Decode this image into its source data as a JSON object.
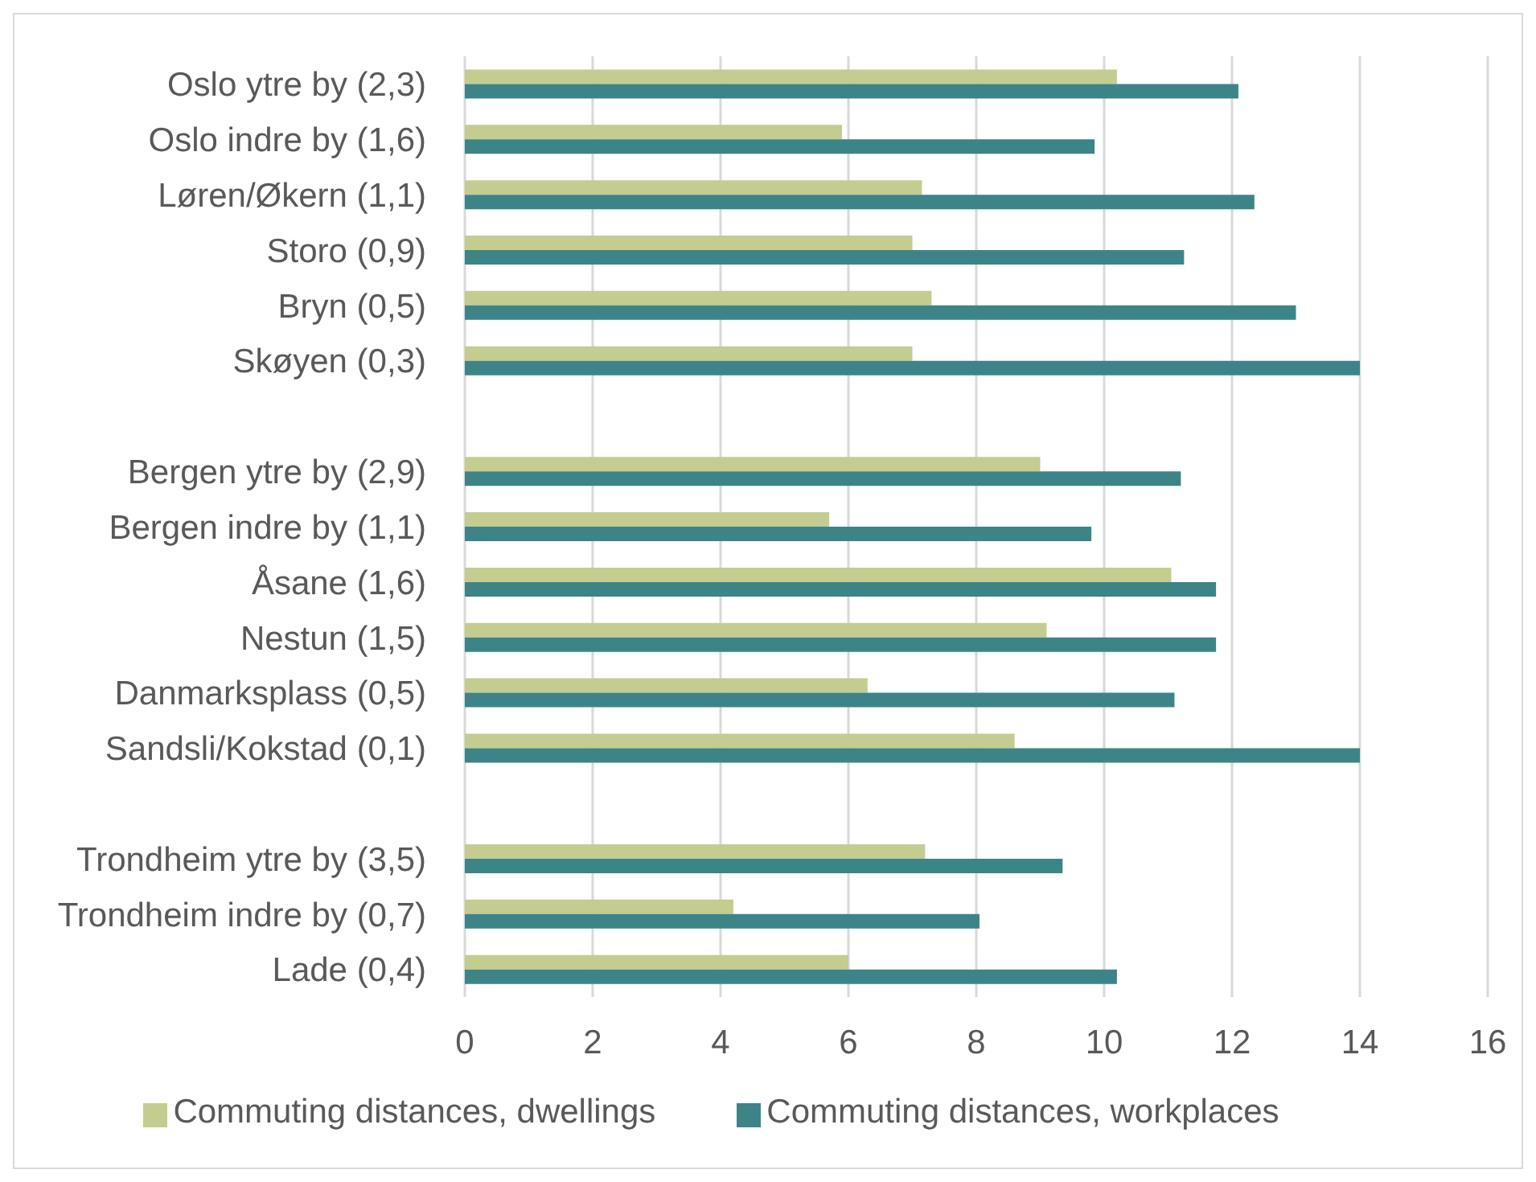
{
  "chart_data": {
    "type": "bar",
    "orientation": "horizontal",
    "categories": [
      "Oslo ytre by (2,3)",
      "Oslo indre by (1,6)",
      "Løren/Økern (1,1)",
      "Storo (0,9)",
      "Bryn (0,5)",
      "Skøyen (0,3)",
      null,
      "Bergen ytre by (2,9)",
      "Bergen indre by (1,1)",
      "Åsane (1,6)",
      "Nestun (1,5)",
      "Danmarksplass (0,5)",
      "Sandsli/Kokstad (0,1)",
      null,
      "Trondheim ytre by (3,5)",
      "Trondheim indre by (0,7)",
      "Lade (0,4)"
    ],
    "series": [
      {
        "name": "Commuting distances, dwellings",
        "color": "#c4cc8f",
        "values": [
          10.2,
          5.9,
          7.15,
          7.0,
          7.3,
          7.0,
          null,
          9.0,
          5.7,
          11.05,
          9.1,
          6.3,
          8.6,
          null,
          7.2,
          4.2,
          6.0
        ]
      },
      {
        "name": "Commuting distances, workplaces",
        "color": "#3d8489",
        "values": [
          12.1,
          9.85,
          12.35,
          11.25,
          13.0,
          14.0,
          null,
          11.2,
          9.8,
          11.75,
          11.75,
          11.1,
          14.0,
          null,
          9.35,
          8.05,
          10.2
        ]
      }
    ],
    "xlim": [
      0,
      16
    ],
    "xticks": [
      0,
      2,
      4,
      6,
      8,
      10,
      12,
      14,
      16
    ],
    "grid": "x",
    "legend": "bottom"
  }
}
